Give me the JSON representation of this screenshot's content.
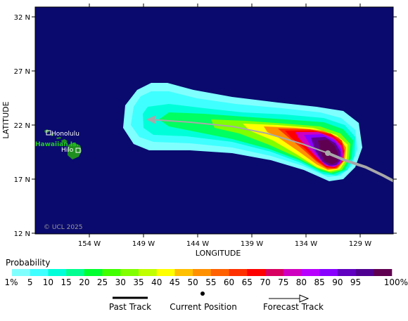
{
  "map": {
    "y_axis_title": "LATITUDE",
    "x_axis_title": "LONGITUDE",
    "lat_ticks": [
      "32 N",
      "27 N",
      "22 N",
      "17 N",
      "12 N"
    ],
    "lon_ticks": [
      "154 W",
      "149 W",
      "144 W",
      "139 W",
      "134 W",
      "129 W"
    ],
    "ocean_color": "#0a0a6e",
    "land_color": "#1f8f1f",
    "places": {
      "honolulu": "Honolulu",
      "islands": "Hawaiian Is.",
      "hilo": "Hilo"
    },
    "copyright": "© UCL 2025",
    "track_color": "#a8a8a8"
  },
  "legend": {
    "title": "Probability",
    "bins": [
      {
        "label": "1%",
        "color": "#80ffff"
      },
      {
        "label": "5",
        "color": "#40ffff"
      },
      {
        "label": "10",
        "color": "#00ffd8"
      },
      {
        "label": "15",
        "color": "#00ff90"
      },
      {
        "label": "20",
        "color": "#00ff30"
      },
      {
        "label": "25",
        "color": "#40ff00"
      },
      {
        "label": "30",
        "color": "#80ff00"
      },
      {
        "label": "35",
        "color": "#c0ff00"
      },
      {
        "label": "40",
        "color": "#ffff00"
      },
      {
        "label": "45",
        "color": "#ffc000"
      },
      {
        "label": "50",
        "color": "#ff9000"
      },
      {
        "label": "55",
        "color": "#ff6000"
      },
      {
        "label": "60",
        "color": "#ff3000"
      },
      {
        "label": "65",
        "color": "#ff0000"
      },
      {
        "label": "70",
        "color": "#d80060"
      },
      {
        "label": "75",
        "color": "#d000c0"
      },
      {
        "label": "80",
        "color": "#b800ff"
      },
      {
        "label": "85",
        "color": "#8800ff"
      },
      {
        "label": "90",
        "color": "#6000c0"
      },
      {
        "label": "95",
        "color": "#500090"
      },
      {
        "label": "100%",
        "color": "#600050"
      }
    ]
  },
  "key": {
    "past": "Past Track",
    "current": "Current Position",
    "forecast": "Forecast Track"
  }
}
